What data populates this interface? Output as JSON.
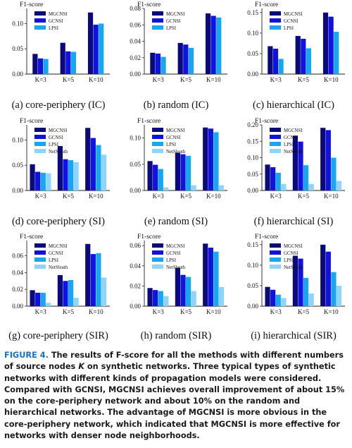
{
  "colors": {
    "MGCNSI": "#0a0a7a",
    "GCNSI": "#1111e0",
    "LPSI": "#16a6f2",
    "NetSleuth": "#8fd3ff"
  },
  "chart_data": [
    {
      "type": "bar",
      "ylabel": "F1-score",
      "caption": "(a) core-periphery (IC)",
      "categories": [
        "K=3",
        "K=5",
        "K=10"
      ],
      "ylim": [
        0,
        0.13
      ],
      "yticks": [
        "0.00",
        "0.05",
        "0.10"
      ],
      "ytick_values": [
        0,
        0.05,
        0.1
      ],
      "legend": [
        "MGCNSI",
        "GCNSI",
        "LPSI"
      ],
      "series": [
        {
          "name": "MGCNSI",
          "values": [
            0.04,
            0.062,
            0.122
          ]
        },
        {
          "name": "GCNSI",
          "values": [
            0.031,
            0.045,
            0.098
          ]
        },
        {
          "name": "LPSI",
          "values": [
            0.03,
            0.044,
            0.1
          ]
        }
      ]
    },
    {
      "type": "bar",
      "ylabel": "F1-score",
      "caption": "(b) random (IC)",
      "categories": [
        "K=3",
        "K=5",
        "K=10"
      ],
      "ylim": [
        0,
        0.08
      ],
      "yticks": [
        "0.00",
        "0.02",
        "0.04",
        "0.06",
        "0.08"
      ],
      "ytick_values": [
        0,
        0.02,
        0.04,
        0.06,
        0.08
      ],
      "legend": [
        "MGCNSI",
        "GCNSI",
        "LPSI"
      ],
      "series": [
        {
          "name": "MGCNSI",
          "values": [
            0.026,
            0.038,
            0.074
          ]
        },
        {
          "name": "GCNSI",
          "values": [
            0.025,
            0.036,
            0.071
          ]
        },
        {
          "name": "LPSI",
          "values": [
            0.021,
            0.032,
            0.069
          ]
        }
      ]
    },
    {
      "type": "bar",
      "ylabel": "F1-score",
      "caption": "(c) hierarchical (IC)",
      "categories": [
        "K=3",
        "K=5",
        "K=10"
      ],
      "ylim": [
        0,
        0.16
      ],
      "yticks": [
        "0.00",
        "0.05",
        "0.10",
        "0.15"
      ],
      "ytick_values": [
        0,
        0.05,
        0.1,
        0.15
      ],
      "legend": [
        "MGCNSI",
        "GCNSI",
        "LPSI"
      ],
      "series": [
        {
          "name": "MGCNSI",
          "values": [
            0.068,
            0.093,
            0.15
          ]
        },
        {
          "name": "GCNSI",
          "values": [
            0.062,
            0.086,
            0.14
          ]
        },
        {
          "name": "LPSI",
          "values": [
            0.037,
            0.063,
            0.103
          ]
        }
      ]
    },
    {
      "type": "bar",
      "ylabel": "F1-score",
      "caption": "(d) core-periphery (SI)",
      "categories": [
        "K=3",
        "K=5",
        "K=10"
      ],
      "ylim": [
        0,
        0.13
      ],
      "yticks": [
        "0.00",
        "0.05",
        "0.10"
      ],
      "ytick_values": [
        0,
        0.05,
        0.1
      ],
      "legend": [
        "MGCNSI",
        "GCNSI",
        "LPSI",
        "NetSleuth"
      ],
      "series": [
        {
          "name": "MGCNSI",
          "values": [
            0.052,
            0.088,
            0.124
          ]
        },
        {
          "name": "GCNSI",
          "values": [
            0.037,
            0.062,
            0.104
          ]
        },
        {
          "name": "LPSI",
          "values": [
            0.035,
            0.06,
            0.09
          ]
        },
        {
          "name": "NetSleuth",
          "values": [
            0.034,
            0.056,
            0.071
          ]
        }
      ]
    },
    {
      "type": "bar",
      "ylabel": "F1-score",
      "caption": "(e) random (SI)",
      "categories": [
        "K=3",
        "K=5",
        "K=10"
      ],
      "ylim": [
        0,
        0.125
      ],
      "yticks": [
        "0.00",
        "0.05",
        "0.10"
      ],
      "ytick_values": [
        0,
        0.05,
        0.1
      ],
      "legend": [
        "MGCNSI",
        "GCNSI",
        "LPSI",
        "NetSleuth"
      ],
      "series": [
        {
          "name": "MGCNSI",
          "values": [
            0.056,
            0.072,
            0.12
          ]
        },
        {
          "name": "GCNSI",
          "values": [
            0.049,
            0.069,
            0.118
          ]
        },
        {
          "name": "LPSI",
          "values": [
            0.041,
            0.066,
            0.111
          ]
        },
        {
          "name": "NetSleuth",
          "values": [
            0.006,
            0.01,
            0.01
          ]
        }
      ]
    },
    {
      "type": "bar",
      "ylabel": "F1-score",
      "caption": "(f) hierarchical (SI)",
      "categories": [
        "K=3",
        "K=5",
        "K=10"
      ],
      "ylim": [
        0,
        0.2
      ],
      "yticks": [
        "0.00",
        "0.05",
        "0.10",
        "0.15",
        "0.20"
      ],
      "ytick_values": [
        0,
        0.05,
        0.1,
        0.15,
        0.2
      ],
      "legend": [
        "MGCNSI",
        "GCNSI",
        "LPSI",
        "NetSleuth"
      ],
      "series": [
        {
          "name": "MGCNSI",
          "values": [
            0.079,
            0.167,
            0.191
          ]
        },
        {
          "name": "GCNSI",
          "values": [
            0.071,
            0.149,
            0.184
          ]
        },
        {
          "name": "LPSI",
          "values": [
            0.054,
            0.077,
            0.1
          ]
        },
        {
          "name": "NetSleuth",
          "values": [
            0.02,
            0.02,
            0.029
          ]
        }
      ]
    },
    {
      "type": "bar",
      "ylabel": "F1-score",
      "caption": "(g) core-periphery (SIR)",
      "categories": [
        "K=3",
        "K=5",
        "K=10"
      ],
      "ylim": [
        0,
        0.078
      ],
      "yticks": [
        "0.00",
        "0.02",
        "0.04",
        "0.06"
      ],
      "ytick_values": [
        0,
        0.02,
        0.04,
        0.06
      ],
      "legend": [
        "MGCNSI",
        "GCNSI",
        "LPSI",
        "NetSleuth"
      ],
      "series": [
        {
          "name": "MGCNSI",
          "values": [
            0.019,
            0.037,
            0.074
          ]
        },
        {
          "name": "GCNSI",
          "values": [
            0.016,
            0.03,
            0.062
          ]
        },
        {
          "name": "LPSI",
          "values": [
            0.016,
            0.031,
            0.063
          ]
        },
        {
          "name": "NetSleuth",
          "values": [
            0.004,
            0.01,
            0.034
          ]
        }
      ]
    },
    {
      "type": "bar",
      "ylabel": "F1-score",
      "caption": "(h) random (SIR)",
      "categories": [
        "K=3",
        "K=5",
        "K=10"
      ],
      "ylim": [
        0,
        0.065
      ],
      "yticks": [
        "0.00",
        "0.02",
        "0.04",
        "0.06"
      ],
      "ytick_values": [
        0,
        0.02,
        0.04,
        0.06
      ],
      "legend": [
        "MGCNSI",
        "GCNSI",
        "LPSI",
        "NetSleuth"
      ],
      "series": [
        {
          "name": "MGCNSI",
          "values": [
            0.018,
            0.038,
            0.062
          ]
        },
        {
          "name": "GCNSI",
          "values": [
            0.016,
            0.031,
            0.058
          ]
        },
        {
          "name": "LPSI",
          "values": [
            0.015,
            0.029,
            0.054
          ]
        },
        {
          "name": "NetSleuth",
          "values": [
            0.01,
            0.015,
            0.019
          ]
        }
      ]
    },
    {
      "type": "bar",
      "ylabel": "F1-score",
      "caption": "(i) hierarchical (SIR)",
      "categories": [
        "K=3",
        "K=5",
        "K=10"
      ],
      "ylim": [
        0,
        0.16
      ],
      "yticks": [
        "0.00",
        "0.05",
        "0.10",
        "0.15"
      ],
      "ytick_values": [
        0,
        0.05,
        0.1,
        0.15
      ],
      "legend": [
        "MGCNSI",
        "GCNSI",
        "LPSI",
        "NetSleuth"
      ],
      "series": [
        {
          "name": "MGCNSI",
          "values": [
            0.047,
            0.123,
            0.15
          ]
        },
        {
          "name": "GCNSI",
          "values": [
            0.04,
            0.116,
            0.133
          ]
        },
        {
          "name": "LPSI",
          "values": [
            0.028,
            0.069,
            0.083
          ]
        },
        {
          "name": "NetSleuth",
          "values": [
            0.02,
            0.031,
            0.05
          ]
        }
      ]
    }
  ],
  "figure_caption": {
    "label": "FIGURE 4.",
    "text_before_k": "The results of F-score for all the methods with different numbers of source nodes",
    "k": "K",
    "text_after_k": "on synthetic networks. Three typical types of synthetic networks with different kinds of propagation models were considered. Compared with GCNSI, MGCNSI achieves overall improvement of about 15% on the core-periphery network and about 10% on the random and hierarchical networks. The advantage of MGCNSI is more obvious in the core-periphery network, which indicated that MGCNSI is more effective for networks with denser node neighborhoods."
  }
}
